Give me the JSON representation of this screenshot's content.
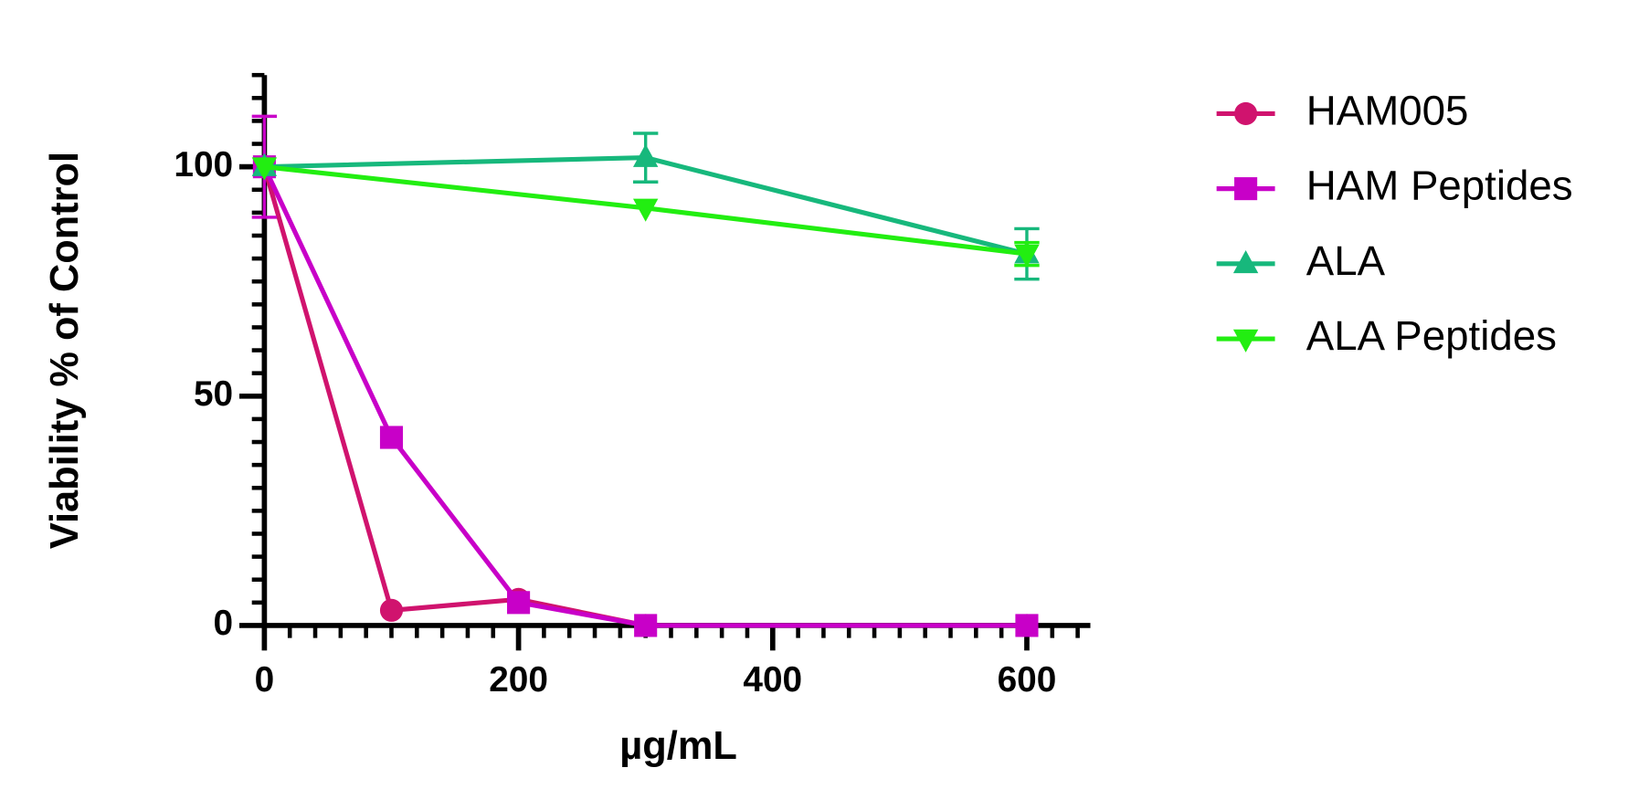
{
  "chart_data": {
    "type": "line",
    "x_label": "µg/mL",
    "y_label": "Viability % of Control",
    "xlim": [
      0,
      650
    ],
    "ylim": [
      0,
      120
    ],
    "xticks": [
      0,
      200,
      400,
      600
    ],
    "yticks": [
      0,
      50,
      100
    ],
    "xminor": [
      20,
      40,
      60,
      80,
      100,
      120,
      140,
      160,
      180,
      220,
      240,
      260,
      280,
      300,
      320,
      340,
      360,
      380,
      420,
      440,
      460,
      480,
      500,
      520,
      540,
      560,
      580,
      620,
      640
    ],
    "yminor": [
      5,
      10,
      15,
      20,
      25,
      30,
      35,
      40,
      45,
      55,
      60,
      65,
      70,
      75,
      80,
      85,
      90,
      95,
      105,
      110,
      115,
      120
    ],
    "legend": "right",
    "series": [
      {
        "name": "HAM005",
        "color": "#d0136e",
        "marker": "circle",
        "x": [
          0,
          100,
          200,
          300,
          600
        ],
        "values": [
          100,
          3.3,
          5.7,
          0,
          0
        ],
        "errors": [
          null,
          null,
          null,
          null,
          null
        ]
      },
      {
        "name": "HAM Peptides",
        "color": "#c800c8",
        "marker": "square",
        "x": [
          0,
          100,
          200,
          300,
          600
        ],
        "values": [
          100,
          41,
          5,
          0,
          0
        ],
        "errors": [
          11,
          null,
          null,
          null,
          null
        ]
      },
      {
        "name": "ALA",
        "color": "#17b87c",
        "marker": "triangle-up",
        "x": [
          0,
          300,
          600
        ],
        "values": [
          100,
          102,
          81
        ],
        "errors": [
          null,
          5.3,
          5.5
        ]
      },
      {
        "name": "ALA Peptides",
        "color": "#22ee11",
        "marker": "triangle-down",
        "x": [
          0,
          300,
          600
        ],
        "values": [
          100,
          91,
          81
        ],
        "errors": [
          null,
          null,
          2.5
        ]
      }
    ]
  }
}
